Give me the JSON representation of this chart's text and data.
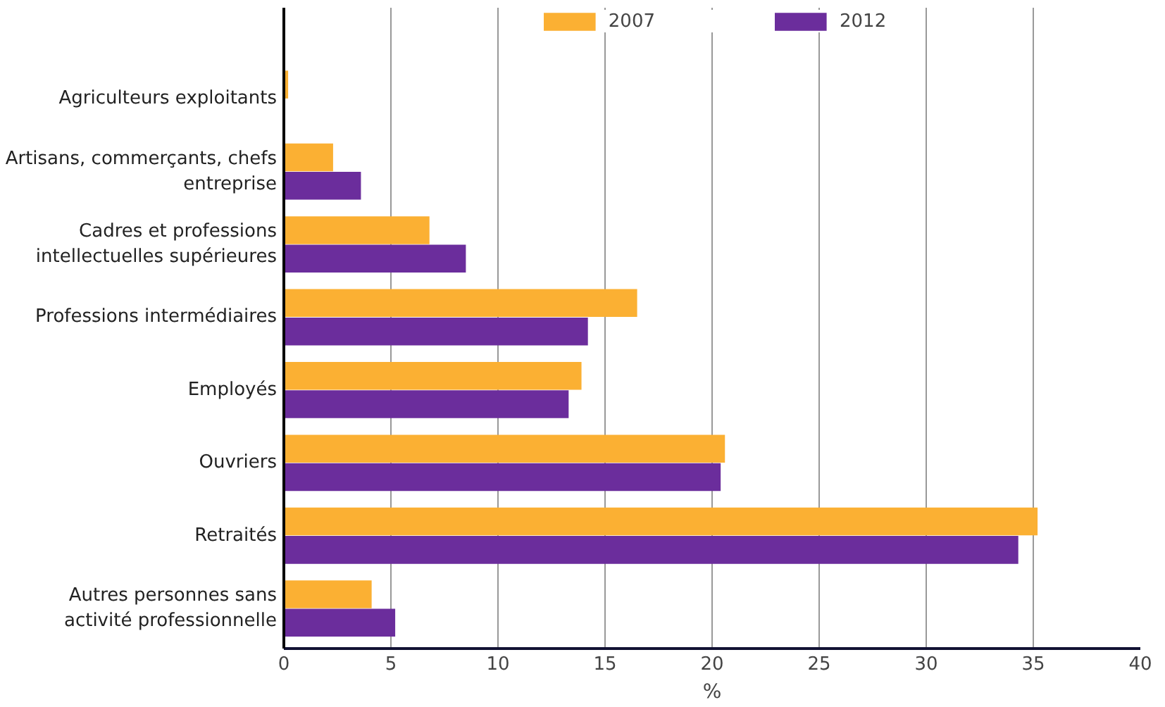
{
  "chart_data": {
    "type": "bar",
    "orientation": "horizontal",
    "xlabel": "%",
    "categories": [
      "Agriculteurs exploitants",
      "Artisans, commerçants, chefs entreprise",
      "Cadres et professions intellectuelles supérieures",
      "Professions intermédiaires",
      "Employés",
      "Ouvriers",
      "Retraités",
      "Autres personnes sans activité professionnelle"
    ],
    "series": [
      {
        "name": "2007",
        "color": "#fbb033",
        "values": [
          0.2,
          2.3,
          6.8,
          16.5,
          13.9,
          20.6,
          35.2,
          4.1
        ]
      },
      {
        "name": "2012",
        "color": "#6b2d9c",
        "values": [
          null,
          3.6,
          8.5,
          14.2,
          13.3,
          20.4,
          34.3,
          5.2
        ]
      }
    ],
    "xlim": [
      0,
      40
    ],
    "xticks": [
      0,
      5,
      10,
      15,
      20,
      25,
      30,
      35,
      40
    ],
    "grid": "x",
    "legend": "top"
  }
}
